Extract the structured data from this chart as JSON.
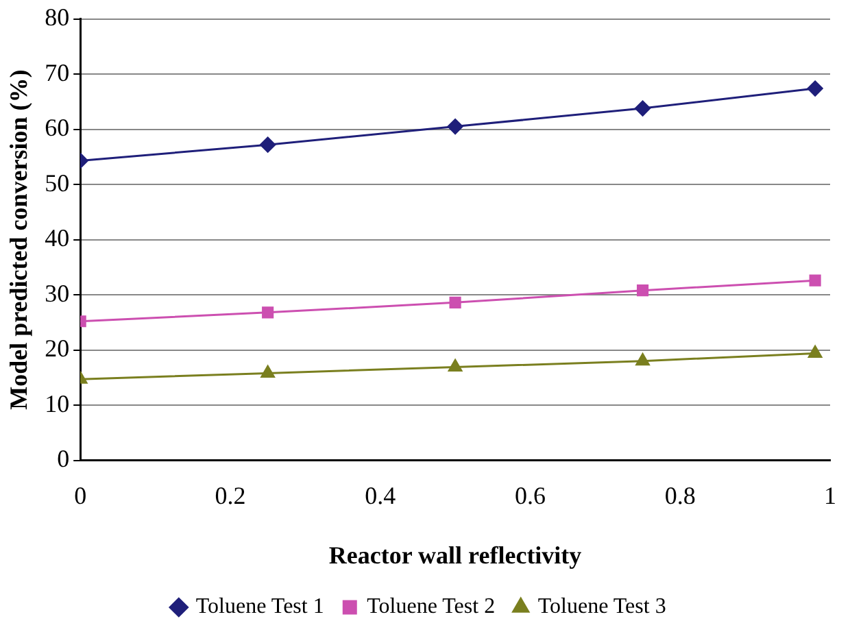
{
  "chart_data": {
    "type": "line",
    "xlabel": "Reactor wall reflectivity",
    "ylabel": "Model predicted conversion (%)",
    "x": [
      0,
      0.25,
      0.5,
      0.75,
      0.98
    ],
    "series": [
      {
        "name": "Toluene Test 1",
        "color": "#1f1f7a",
        "marker": "diamond",
        "values": [
          54.3,
          57.2,
          60.5,
          63.8,
          67.4
        ]
      },
      {
        "name": "Toluene Test 2",
        "color": "#cc4fb0",
        "marker": "square",
        "values": [
          25.2,
          26.8,
          28.6,
          30.8,
          32.6
        ]
      },
      {
        "name": "Toluene Test 3",
        "color": "#7a7f1f",
        "marker": "triangle",
        "values": [
          14.7,
          15.8,
          16.9,
          18.0,
          19.4
        ]
      }
    ],
    "xlim": [
      0,
      1
    ],
    "xticks": [
      0,
      0.2,
      0.4,
      0.6,
      0.8,
      1
    ],
    "ylim": [
      0,
      80
    ],
    "yticks": [
      0,
      10,
      20,
      30,
      40,
      50,
      60,
      70,
      80
    ],
    "grid": "y",
    "legend": "bottom",
    "line_style": "solid"
  }
}
